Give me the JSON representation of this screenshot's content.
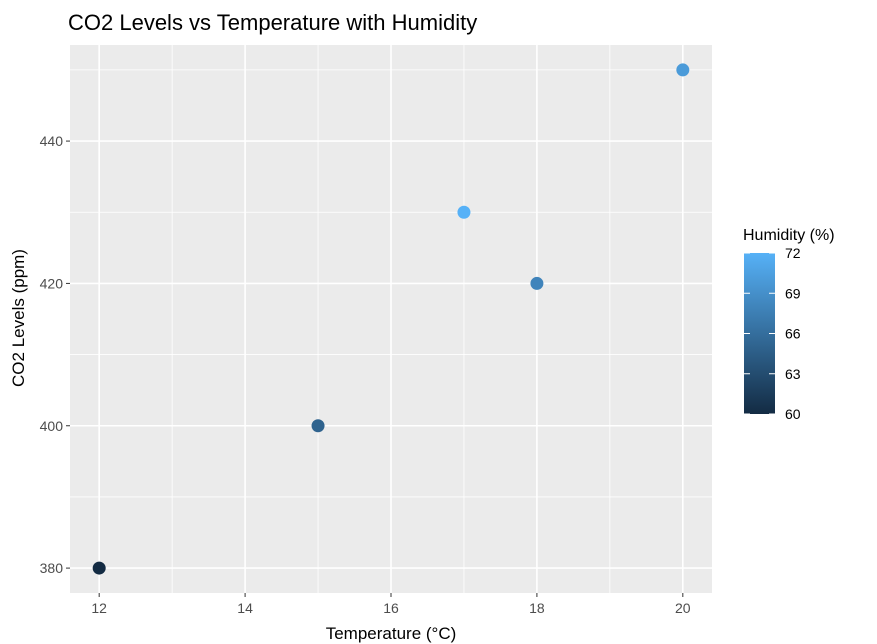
{
  "chart_data": {
    "type": "scatter",
    "title": "CO2 Levels vs Temperature with Humidity",
    "xlabel": "Temperature (°C)",
    "ylabel": "CO2 Levels (ppm)",
    "xlim": [
      11.6,
      20.4
    ],
    "ylim": [
      376.5,
      453.5
    ],
    "x_ticks": [
      12,
      14,
      16,
      18,
      20
    ],
    "y_ticks": [
      380,
      400,
      420,
      440
    ],
    "x_tick_labels": [
      "12",
      "14",
      "16",
      "18",
      "20"
    ],
    "y_tick_labels": [
      "380",
      "400",
      "420",
      "440"
    ],
    "grid": true,
    "legend": {
      "title": "Humidity (%)",
      "placement": "right",
      "type": "colorbar",
      "range": [
        60,
        72
      ],
      "ticks": [
        60,
        63,
        66,
        69,
        72
      ],
      "tick_labels": [
        "60",
        "63",
        "66",
        "69",
        "72"
      ],
      "low_color": "#132B43",
      "high_color": "#56B1F7"
    },
    "points": [
      {
        "x": 12,
        "y": 380,
        "humidity": 60
      },
      {
        "x": 15,
        "y": 400,
        "humidity": 65
      },
      {
        "x": 17,
        "y": 430,
        "humidity": 72
      },
      {
        "x": 18,
        "y": 420,
        "humidity": 68
      },
      {
        "x": 20,
        "y": 450,
        "humidity": 70
      }
    ],
    "panel_color": "#EBEBEB",
    "grid_color": "#FFFFFF"
  }
}
